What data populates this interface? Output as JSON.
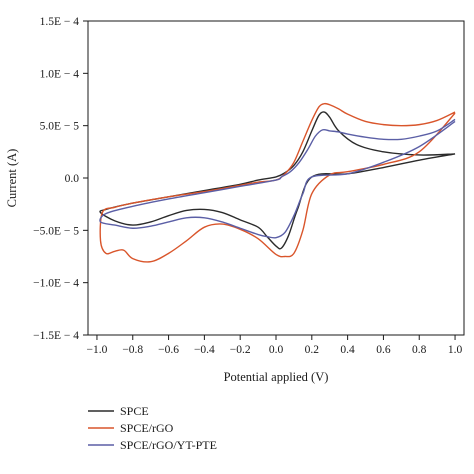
{
  "chart_data": {
    "type": "line",
    "title": "",
    "xlabel": "Potential applied (V)",
    "ylabel": "Current (A)",
    "xlim": [
      -1.05,
      1.05
    ],
    "ylim": [
      -0.00015,
      0.00015
    ],
    "grid": false,
    "legend_position": "bottom-left, below plot",
    "x_ticks": [
      -1.0,
      -0.8,
      -0.6,
      -0.4,
      -0.2,
      0.0,
      0.2,
      0.4,
      0.6,
      0.8,
      1.0
    ],
    "x_tick_labels": [
      "−1.0",
      "−0.8",
      "−0.6",
      "−0.4",
      "−0.2",
      "0.0",
      "0.2",
      "0.4",
      "0.6",
      "0.8",
      "1.0"
    ],
    "y_ticks": [
      -0.00015,
      -0.0001,
      -5e-05,
      0.0,
      5e-05,
      0.0001,
      0.00015
    ],
    "y_tick_labels": [
      "−1.5E − 4",
      "−1.0E − 4",
      "−5.0E − 5",
      "0.0",
      "5.0E − 5",
      "1.0E − 4",
      "1.5E − 4"
    ],
    "series": [
      {
        "name": "SPCE",
        "color": "#2b2b2b",
        "x": [
          1.0,
          0.8,
          0.6,
          0.45,
          0.35,
          0.3,
          0.27,
          0.24,
          0.2,
          0.15,
          0.1,
          0.05,
          0.0,
          -0.1,
          -0.2,
          -0.4,
          -0.6,
          -0.8,
          -0.95,
          -0.98,
          -0.9,
          -0.8,
          -0.7,
          -0.6,
          -0.5,
          -0.4,
          -0.3,
          -0.2,
          -0.1,
          -0.05,
          0.0,
          0.03,
          0.07,
          0.12,
          0.2,
          0.4,
          0.6,
          0.8,
          1.0
        ],
        "y": [
          2.3e-05,
          2.2e-05,
          2.5e-05,
          3.2e-05,
          4.5e-05,
          5.8e-05,
          6.3e-05,
          6e-05,
          4.5e-05,
          2.5e-05,
          1.2e-05,
          5e-06,
          1e-06,
          -2e-06,
          -6e-06,
          -1.2e-05,
          -1.8e-05,
          -2.4e-05,
          -3e-05,
          -3.3e-05,
          -4.1e-05,
          -4.5e-05,
          -4.2e-05,
          -3.6e-05,
          -3.1e-05,
          -3e-05,
          -3.3e-05,
          -4e-05,
          -4.7e-05,
          -5.6e-05,
          -6.5e-05,
          -6.7e-05,
          -5.5e-05,
          -3e-05,
          1e-06,
          4e-06,
          1e-05,
          1.7e-05,
          2.3e-05
        ]
      },
      {
        "name": "SPCE/rGO",
        "color": "#d9552b",
        "x": [
          1.0,
          0.9,
          0.8,
          0.7,
          0.6,
          0.5,
          0.4,
          0.35,
          0.3,
          0.27,
          0.24,
          0.2,
          0.15,
          0.1,
          0.05,
          0.0,
          -0.1,
          -0.2,
          -0.4,
          -0.6,
          -0.8,
          -0.9,
          -0.97,
          -0.98,
          -0.95,
          -0.9,
          -0.85,
          -0.8,
          -0.7,
          -0.6,
          -0.5,
          -0.4,
          -0.3,
          -0.2,
          -0.1,
          0.0,
          0.05,
          0.1,
          0.15,
          0.2,
          0.3,
          0.4,
          0.6,
          0.8,
          1.0
        ],
        "y": [
          6.3e-05,
          5.5e-05,
          5.1e-05,
          5e-05,
          5.1e-05,
          5.4e-05,
          6.1e-05,
          6.6e-05,
          7e-05,
          7.1e-05,
          6.8e-05,
          5.5e-05,
          3.5e-05,
          1.5e-05,
          4e-06,
          -2e-06,
          -4e-06,
          -7e-06,
          -1.3e-05,
          -1.8e-05,
          -2.4e-05,
          -2.8e-05,
          -3.3e-05,
          -6e-05,
          -7.2e-05,
          -7e-05,
          -6.9e-05,
          -7.7e-05,
          -8e-05,
          -7.2e-05,
          -6e-05,
          -4.7e-05,
          -4.4e-05,
          -4.9e-05,
          -5.8e-05,
          -7.3e-05,
          -7.5e-05,
          -7.2e-05,
          -5e-05,
          -1.5e-05,
          3e-06,
          6e-06,
          1.3e-05,
          2.5e-05,
          6.2e-05
        ]
      },
      {
        "name": "SPCE/rGO/YT-PTE",
        "color": "#5b5fa6",
        "x": [
          1.0,
          0.9,
          0.8,
          0.7,
          0.6,
          0.5,
          0.4,
          0.35,
          0.3,
          0.26,
          0.22,
          0.18,
          0.13,
          0.08,
          0.03,
          0.0,
          -0.2,
          -0.4,
          -0.6,
          -0.8,
          -0.95,
          -0.98,
          -0.9,
          -0.8,
          -0.7,
          -0.6,
          -0.5,
          -0.4,
          -0.3,
          -0.2,
          -0.1,
          -0.05,
          0.0,
          0.05,
          0.1,
          0.15,
          0.2,
          0.4,
          0.6,
          0.8,
          1.0
        ],
        "y": [
          5.6e-05,
          4.5e-05,
          4e-05,
          3.7e-05,
          3.7e-05,
          3.9e-05,
          4.2e-05,
          4.4e-05,
          4.5e-05,
          4.6e-05,
          4e-05,
          2.8e-05,
          1.5e-05,
          6e-06,
          1e-06,
          -2e-06,
          -8e-06,
          -1.4e-05,
          -2e-05,
          -2.7e-05,
          -3.4e-05,
          -4.2e-05,
          -4.5e-05,
          -4.8e-05,
          -4.6e-05,
          -4.2e-05,
          -3.8e-05,
          -3.8e-05,
          -4.2e-05,
          -4.8e-05,
          -5.4e-05,
          -5.6e-05,
          -5.7e-05,
          -5.2e-05,
          -3.6e-05,
          -1.5e-05,
          1e-06,
          4e-06,
          1.5e-05,
          3e-05,
          5.4e-05
        ]
      }
    ]
  }
}
